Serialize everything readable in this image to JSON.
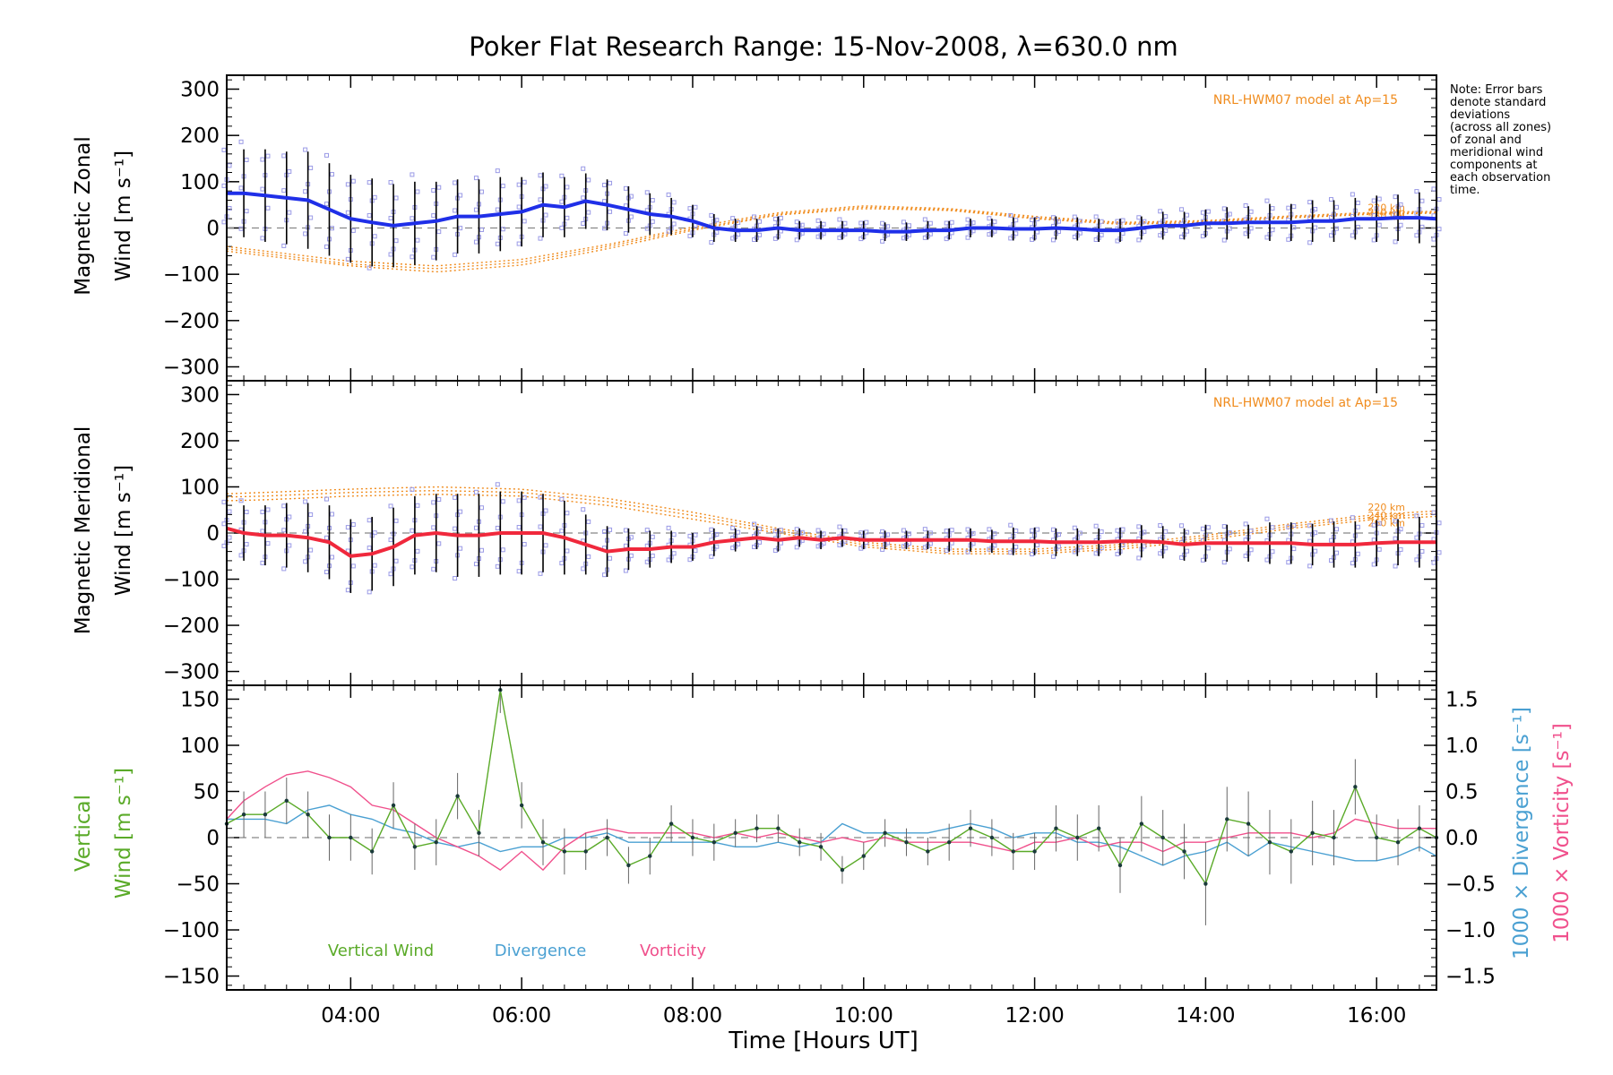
{
  "title": "Poker Flat Research Range: 15-Nov-2008, λ=630.0 nm",
  "note": [
    "Note: Error bars",
    "denote standard",
    "deviations",
    "(across all zones)",
    "of zonal and",
    "meridional wind",
    "components at",
    "each observation",
    "time."
  ],
  "colors": {
    "zonal": "#1f2fe8",
    "meridional": "#f0283c",
    "model": "#f08c1e",
    "vertical": "#5aaa28",
    "divergence": "#4aa0d2",
    "vorticity": "#f0508c",
    "scatter": "#9a9ae6",
    "errorbar": "#000000",
    "zero": "#888888"
  },
  "chart_data": [
    {
      "type": "line",
      "panel": "zonal",
      "title": "Poker Flat Research Range: 15-Nov-2008, λ=630.0 nm",
      "ylabel": [
        "Magnetic Zonal",
        "Wind [m s⁻¹]"
      ],
      "xlim": [
        2.55,
        16.7
      ],
      "ylim": [
        -330,
        330
      ],
      "yticks": [
        300,
        200,
        100,
        0,
        -100,
        -200,
        -300
      ],
      "model_label": "NRL-HWM07 model at Ap=15",
      "model_curves": [
        {
          "name": "220 km",
          "x": [
            2.55,
            3,
            4,
            5,
            6,
            7,
            8,
            9,
            10,
            11,
            12,
            13,
            14,
            15,
            16,
            16.7
          ],
          "values": [
            -50,
            -60,
            -82,
            -95,
            -80,
            -45,
            -5,
            28,
            42,
            38,
            20,
            8,
            12,
            22,
            30,
            32
          ]
        },
        {
          "name": "240 km",
          "x": [
            2.55,
            3,
            4,
            5,
            6,
            7,
            8,
            9,
            10,
            11,
            12,
            13,
            14,
            15,
            16,
            16.7
          ],
          "values": [
            -45,
            -55,
            -78,
            -88,
            -74,
            -40,
            -2,
            30,
            45,
            40,
            22,
            10,
            14,
            24,
            32,
            34
          ]
        },
        {
          "name": "260 km",
          "x": [
            2.55,
            3,
            4,
            5,
            6,
            7,
            8,
            9,
            10,
            11,
            12,
            13,
            14,
            15,
            16,
            16.7
          ],
          "values": [
            -40,
            -50,
            -72,
            -82,
            -68,
            -36,
            2,
            33,
            48,
            42,
            25,
            12,
            16,
            26,
            34,
            36
          ]
        }
      ],
      "model_curve_labels": [
        "220 km",
        "240 km",
        "260 km"
      ],
      "x": [
        2.55,
        2.75,
        3,
        3.25,
        3.5,
        3.75,
        4,
        4.25,
        4.5,
        4.75,
        5,
        5.25,
        5.5,
        5.75,
        6,
        6.25,
        6.5,
        6.75,
        7,
        7.25,
        7.5,
        7.75,
        8,
        8.25,
        8.5,
        8.75,
        9,
        9.25,
        9.5,
        9.75,
        10,
        10.25,
        10.5,
        10.75,
        11,
        11.25,
        11.5,
        11.75,
        12,
        12.25,
        12.5,
        12.75,
        13,
        13.25,
        13.5,
        13.75,
        14,
        14.25,
        14.5,
        14.75,
        15,
        15.25,
        15.5,
        15.75,
        16,
        16.25,
        16.5,
        16.7
      ],
      "values": [
        75,
        75,
        70,
        65,
        60,
        40,
        20,
        12,
        5,
        10,
        15,
        25,
        25,
        30,
        35,
        50,
        45,
        58,
        50,
        40,
        30,
        25,
        15,
        0,
        -5,
        -5,
        0,
        -5,
        -5,
        -5,
        -5,
        -8,
        -8,
        -5,
        -5,
        0,
        0,
        -2,
        -2,
        0,
        -2,
        -5,
        -5,
        0,
        5,
        5,
        10,
        10,
        12,
        12,
        12,
        15,
        15,
        20,
        20,
        22,
        22,
        20
      ],
      "errors": [
        90,
        95,
        100,
        100,
        105,
        100,
        95,
        95,
        90,
        90,
        85,
        80,
        80,
        80,
        75,
        70,
        65,
        60,
        55,
        50,
        45,
        40,
        35,
        30,
        25,
        25,
        25,
        20,
        20,
        20,
        20,
        20,
        20,
        20,
        20,
        20,
        20,
        25,
        25,
        25,
        25,
        25,
        25,
        25,
        30,
        30,
        30,
        35,
        35,
        40,
        40,
        45,
        45,
        45,
        50,
        50,
        55,
        55
      ]
    },
    {
      "type": "line",
      "panel": "meridional",
      "ylabel": [
        "Magnetic Meridional",
        "Wind [m s⁻¹]"
      ],
      "xlim": [
        2.55,
        16.7
      ],
      "ylim": [
        -330,
        330
      ],
      "yticks": [
        300,
        200,
        100,
        0,
        -100,
        -200,
        -300
      ],
      "model_label": "NRL-HWM07 model at Ap=15",
      "model_curves": [
        {
          "name": "220 km",
          "x": [
            2.55,
            3,
            4,
            5,
            6,
            7,
            8,
            9,
            10,
            11,
            12,
            13,
            14,
            15,
            16,
            16.7
          ],
          "values": [
            85,
            88,
            95,
            100,
            95,
            75,
            45,
            10,
            -20,
            -35,
            -35,
            -25,
            -5,
            20,
            40,
            48
          ]
        },
        {
          "name": "240 km",
          "x": [
            2.55,
            3,
            4,
            5,
            6,
            7,
            8,
            9,
            10,
            11,
            12,
            13,
            14,
            15,
            16,
            16.7
          ],
          "values": [
            78,
            80,
            88,
            92,
            88,
            68,
            38,
            5,
            -25,
            -40,
            -40,
            -30,
            -10,
            15,
            35,
            42
          ]
        },
        {
          "name": "260 km",
          "x": [
            2.55,
            3,
            4,
            5,
            6,
            7,
            8,
            9,
            10,
            11,
            12,
            13,
            14,
            15,
            16,
            16.7
          ],
          "values": [
            70,
            72,
            80,
            84,
            80,
            60,
            30,
            0,
            -30,
            -45,
            -45,
            -35,
            -15,
            10,
            30,
            36
          ]
        }
      ],
      "model_curve_labels": [
        "220 km",
        "240 km",
        "260 km"
      ],
      "x": [
        2.55,
        2.75,
        3,
        3.25,
        3.5,
        3.75,
        4,
        4.25,
        4.5,
        4.75,
        5,
        5.25,
        5.5,
        5.75,
        6,
        6.25,
        6.5,
        6.75,
        7,
        7.25,
        7.5,
        7.75,
        8,
        8.25,
        8.5,
        8.75,
        9,
        9.25,
        9.5,
        9.75,
        10,
        10.25,
        10.5,
        10.75,
        11,
        11.25,
        11.5,
        11.75,
        12,
        12.25,
        12.5,
        12.75,
        13,
        13.25,
        13.5,
        13.75,
        14,
        14.25,
        14.5,
        14.75,
        15,
        15.25,
        15.5,
        15.75,
        16,
        16.25,
        16.5,
        16.7
      ],
      "values": [
        10,
        0,
        -5,
        -5,
        -10,
        -20,
        -50,
        -45,
        -30,
        -5,
        0,
        -5,
        -5,
        0,
        0,
        0,
        -10,
        -25,
        -40,
        -35,
        -35,
        -30,
        -30,
        -20,
        -15,
        -10,
        -15,
        -10,
        -15,
        -10,
        -15,
        -15,
        -15,
        -15,
        -15,
        -15,
        -18,
        -18,
        -18,
        -20,
        -20,
        -20,
        -18,
        -18,
        -20,
        -25,
        -22,
        -22,
        -22,
        -22,
        -22,
        -25,
        -25,
        -25,
        -22,
        -20,
        -20,
        -20
      ],
      "errors": [
        55,
        60,
        65,
        70,
        75,
        80,
        80,
        80,
        85,
        85,
        85,
        90,
        90,
        90,
        90,
        85,
        80,
        65,
        55,
        45,
        40,
        35,
        30,
        30,
        25,
        25,
        25,
        20,
        20,
        20,
        20,
        20,
        20,
        20,
        25,
        25,
        25,
        30,
        30,
        30,
        30,
        30,
        30,
        35,
        35,
        35,
        40,
        40,
        40,
        45,
        45,
        45,
        50,
        50,
        50,
        50,
        55,
        55
      ]
    },
    {
      "type": "line",
      "panel": "vertical",
      "xlabel": "Time [Hours UT]",
      "ylabel_left": [
        "Vertical",
        "Wind [m s⁻¹]"
      ],
      "ylabel_right_1": "1000 × Divergence [s⁻¹]",
      "ylabel_right_2": "1000 × Vorticity [s⁻¹]",
      "xlim": [
        2.55,
        16.7
      ],
      "ylim": [
        -165,
        165
      ],
      "ylim_right": [
        -1.65,
        1.65
      ],
      "yticks": [
        150,
        100,
        50,
        0,
        -50,
        -100,
        -150
      ],
      "yticks_right": [
        1.5,
        1.0,
        0.5,
        0.0,
        -0.5,
        -1.0,
        -1.5
      ],
      "xticks": [
        "04:00",
        "06:00",
        "08:00",
        "10:00",
        "12:00",
        "14:00",
        "16:00"
      ],
      "xtick_values": [
        4,
        6,
        8,
        10,
        12,
        14,
        16
      ],
      "legend": [
        "Vertical Wind",
        "Divergence",
        "Vorticity"
      ],
      "series": [
        {
          "name": "Vertical Wind",
          "x": [
            2.55,
            2.75,
            3,
            3.25,
            3.5,
            3.75,
            4,
            4.25,
            4.5,
            4.75,
            5,
            5.25,
            5.5,
            5.75,
            6,
            6.25,
            6.5,
            6.75,
            7,
            7.25,
            7.5,
            7.75,
            8,
            8.25,
            8.5,
            8.75,
            9,
            9.25,
            9.5,
            9.75,
            10,
            10.25,
            10.5,
            10.75,
            11,
            11.25,
            11.5,
            11.75,
            12,
            12.25,
            12.5,
            12.75,
            13,
            13.25,
            13.5,
            13.75,
            14,
            14.25,
            14.5,
            14.75,
            15,
            15.25,
            15.5,
            15.75,
            16,
            16.25,
            16.5,
            16.7
          ],
          "values": [
            15,
            25,
            25,
            40,
            25,
            0,
            0,
            -15,
            35,
            -10,
            -5,
            45,
            5,
            160,
            35,
            -5,
            -15,
            -15,
            0,
            -30,
            -20,
            15,
            0,
            -5,
            5,
            10,
            10,
            -5,
            -10,
            -35,
            -20,
            5,
            -5,
            -15,
            -5,
            10,
            0,
            -15,
            -15,
            10,
            0,
            10,
            -30,
            15,
            0,
            -15,
            -50,
            20,
            15,
            -5,
            -15,
            5,
            0,
            55,
            0,
            -5,
            10,
            0
          ],
          "errors": [
            25,
            25,
            25,
            25,
            25,
            25,
            25,
            25,
            25,
            25,
            25,
            25,
            25,
            25,
            25,
            25,
            25,
            20,
            20,
            20,
            20,
            20,
            20,
            20,
            15,
            15,
            15,
            15,
            15,
            15,
            15,
            15,
            15,
            15,
            20,
            20,
            20,
            20,
            20,
            25,
            25,
            25,
            30,
            30,
            30,
            30,
            45,
            35,
            35,
            35,
            35,
            35,
            30,
            30,
            25,
            25,
            25,
            25
          ]
        },
        {
          "name": "Divergence",
          "x": [
            2.55,
            2.75,
            3,
            3.25,
            3.5,
            3.75,
            4,
            4.25,
            4.5,
            4.75,
            5,
            5.25,
            5.5,
            5.75,
            6,
            6.25,
            6.5,
            6.75,
            7,
            7.25,
            7.5,
            7.75,
            8,
            8.25,
            8.5,
            8.75,
            9,
            9.25,
            9.5,
            9.75,
            10,
            10.25,
            10.5,
            10.75,
            11,
            11.25,
            11.5,
            11.75,
            12,
            12.25,
            12.5,
            12.75,
            13,
            13.25,
            13.5,
            13.75,
            14,
            14.25,
            14.5,
            14.75,
            15,
            15.25,
            15.5,
            15.75,
            16,
            16.25,
            16.5,
            16.7
          ],
          "values": [
            0.2,
            0.2,
            0.2,
            0.15,
            0.3,
            0.35,
            0.25,
            0.2,
            0.1,
            0.05,
            -0.05,
            -0.1,
            -0.05,
            -0.15,
            -0.1,
            -0.1,
            0.0,
            0.0,
            0.05,
            -0.05,
            -0.05,
            -0.05,
            -0.05,
            -0.05,
            -0.1,
            -0.1,
            -0.05,
            -0.1,
            -0.05,
            0.15,
            0.05,
            0.05,
            0.05,
            0.05,
            0.1,
            0.15,
            0.1,
            0.0,
            0.05,
            0.05,
            -0.05,
            -0.05,
            -0.1,
            -0.2,
            -0.3,
            -0.2,
            -0.15,
            -0.05,
            -0.2,
            -0.05,
            -0.1,
            -0.15,
            -0.2,
            -0.25,
            -0.25,
            -0.2,
            -0.1,
            -0.2
          ]
        },
        {
          "name": "Vorticity",
          "x": [
            2.55,
            2.75,
            3,
            3.25,
            3.5,
            3.75,
            4,
            4.25,
            4.5,
            4.75,
            5,
            5.25,
            5.5,
            5.75,
            6,
            6.25,
            6.5,
            6.75,
            7,
            7.25,
            7.5,
            7.75,
            8,
            8.25,
            8.5,
            8.75,
            9,
            9.25,
            9.5,
            9.75,
            10,
            10.25,
            10.5,
            10.75,
            11,
            11.25,
            11.5,
            11.75,
            12,
            12.25,
            12.5,
            12.75,
            13,
            13.25,
            13.5,
            13.75,
            14,
            14.25,
            14.5,
            14.75,
            15,
            15.25,
            15.5,
            15.75,
            16,
            16.25,
            16.5,
            16.7
          ],
          "values": [
            0.2,
            0.4,
            0.55,
            0.68,
            0.72,
            0.65,
            0.55,
            0.35,
            0.3,
            0.15,
            0.0,
            -0.1,
            -0.2,
            -0.35,
            -0.15,
            -0.35,
            -0.1,
            0.05,
            0.1,
            0.05,
            0.05,
            0.05,
            0.05,
            0.0,
            0.05,
            0.0,
            0.05,
            0.0,
            -0.05,
            0.0,
            -0.05,
            0.0,
            -0.05,
            -0.05,
            -0.05,
            -0.05,
            -0.1,
            -0.15,
            -0.05,
            -0.05,
            0.0,
            -0.1,
            -0.05,
            -0.05,
            -0.15,
            -0.05,
            -0.05,
            0.0,
            0.05,
            0.05,
            0.05,
            0.0,
            0.05,
            0.2,
            0.15,
            0.1,
            0.1,
            0.1
          ]
        }
      ]
    }
  ]
}
